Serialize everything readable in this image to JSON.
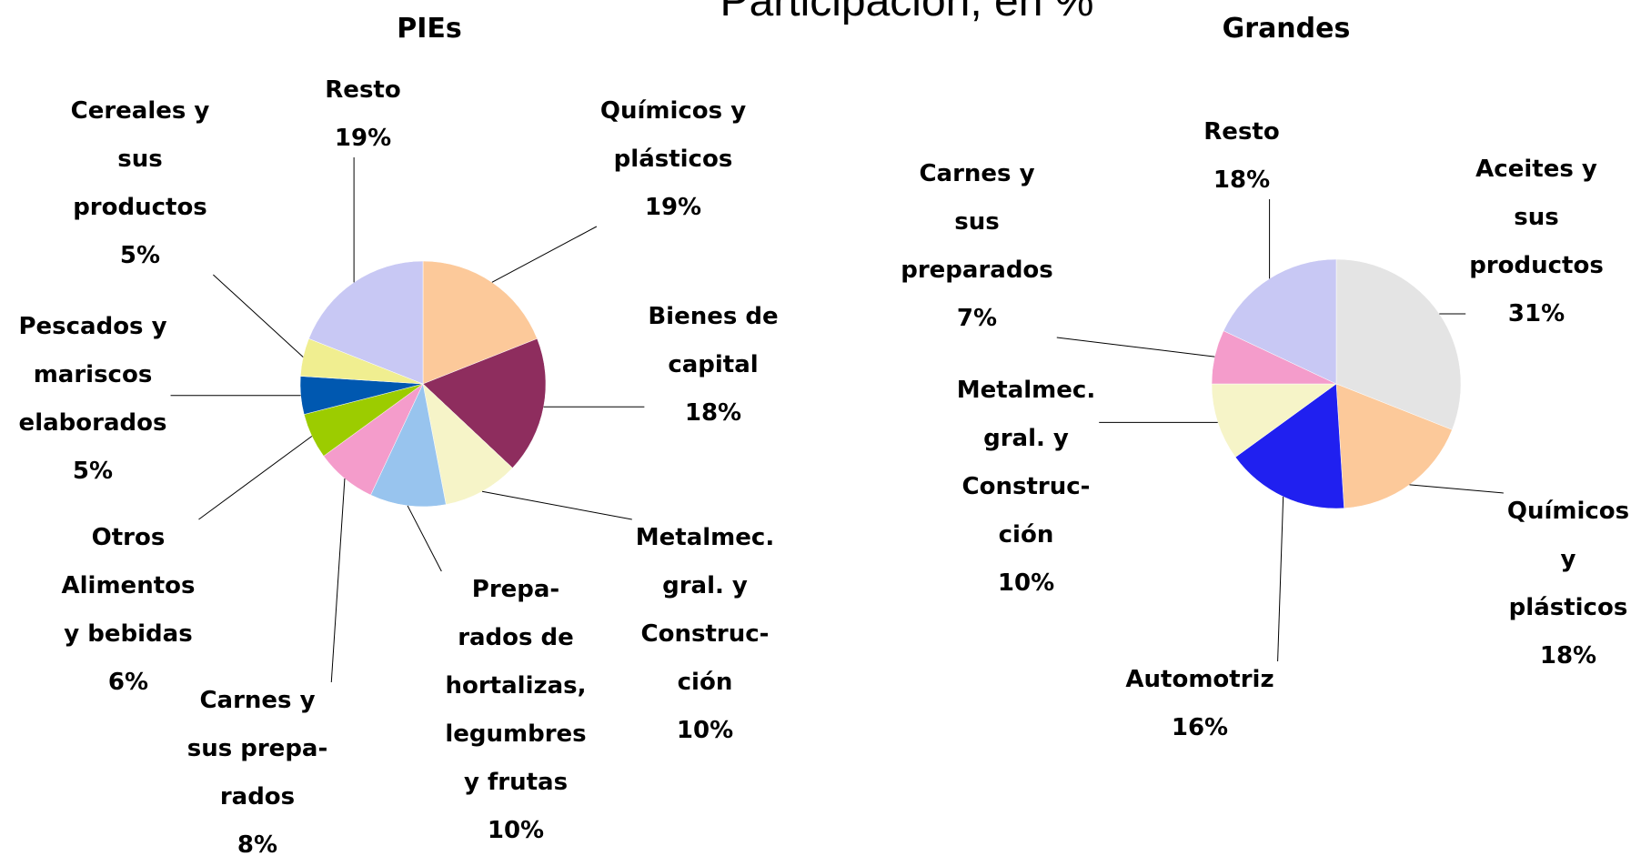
{
  "title": "Participación, en %",
  "chart_data": [
    {
      "type": "pie",
      "title": "PIEs",
      "categories": [
        "Químicos y\nplásticos",
        "Bienes de\ncapital",
        "Metalmec.\ngral. y\nConstruc-\nción",
        "Prepa-\nrados de\nhortalizas,\nlegumbres\ny frutas",
        "Carnes y\nsus prepa-\nrados",
        "Otros\nAlimentos\ny bebidas",
        "Pescados y\nmariscos\nelaborados",
        "Cereales y\nsus\nproductos",
        "Resto"
      ],
      "values": [
        19,
        18,
        10,
        10,
        8,
        6,
        5,
        5,
        19
      ],
      "value_labels": [
        "19%",
        "18%",
        "10%",
        "10%",
        "8%",
        "6%",
        "5%",
        "5%",
        "19%"
      ],
      "colors": [
        "#fcc99a",
        "#8e2d5e",
        "#f6f4c8",
        "#98c4ee",
        "#f49ccb",
        "#9ccc00",
        "#0058b0",
        "#f0ee90",
        "#c8c8f4"
      ]
    },
    {
      "type": "pie",
      "title": "Grandes",
      "categories": [
        "Aceites y\nsus\nproductos",
        "Químicos y\nplásticos",
        "Automotriz",
        "Metalmec.\ngral. y\nConstruc-\nción",
        "Carnes y\nsus\npreparados",
        "Resto"
      ],
      "values": [
        31,
        18,
        16,
        10,
        7,
        18
      ],
      "value_labels": [
        "31%",
        "18%",
        "16%",
        "10%",
        "7%",
        "18%"
      ],
      "colors": [
        "#e4e4e4",
        "#fcc99a",
        "#2020f0",
        "#f6f4c8",
        "#f49ccb",
        "#c8c8f4"
      ]
    }
  ]
}
